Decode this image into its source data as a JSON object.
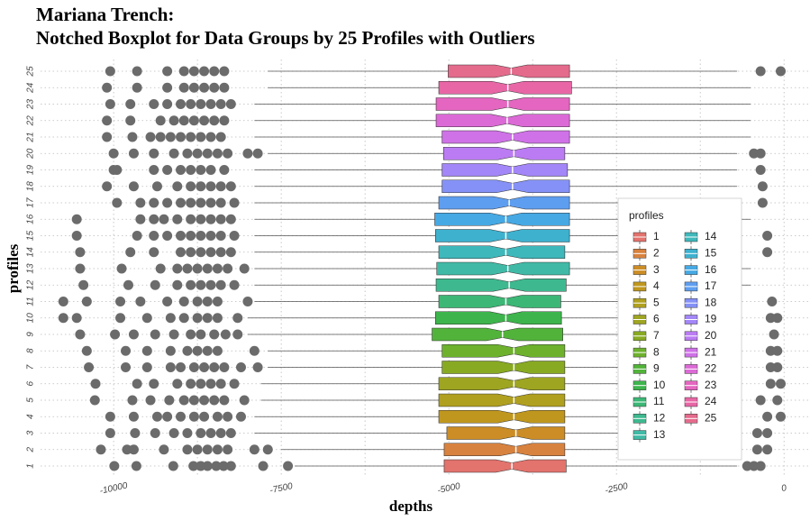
{
  "chart_data": {
    "type": "boxplot",
    "title": "Mariana Trench:",
    "subtitle": "Notched Boxplot for Data Groups by 25 Profiles with Outliers",
    "x_label": "depths",
    "y_label": "profiles",
    "legend_title": "profiles",
    "xlim": [
      -11090,
      360
    ],
    "xticks": [
      -10000,
      -7500,
      -5000,
      -2500,
      0
    ],
    "x_minor_ticks": [
      -8750,
      -6250,
      -3750,
      -1250
    ],
    "grid": true,
    "legend_position": "right",
    "categories": [
      "1",
      "2",
      "3",
      "4",
      "5",
      "6",
      "7",
      "8",
      "9",
      "10",
      "11",
      "12",
      "13",
      "14",
      "15",
      "16",
      "17",
      "18",
      "19",
      "20",
      "21",
      "22",
      "23",
      "24",
      "25"
    ],
    "series": [
      {
        "name": "1",
        "color": "#e3736d",
        "whisker_low": -7300,
        "q1": -5070,
        "median": -4060,
        "q3": -3250,
        "whisker_high": -700,
        "notch": [
          -4300,
          -3820
        ],
        "outliers": [
          -9990,
          -9660,
          -9110,
          -8810,
          -8700,
          -8600,
          -8470,
          -8360,
          -8250,
          -7770,
          -7400,
          -550,
          -450,
          -350
        ]
      },
      {
        "name": "2",
        "color": "#d8823f",
        "whisker_low": -7500,
        "q1": -5070,
        "median": -4000,
        "q3": -3270,
        "whisker_high": -700,
        "notch": [
          -4240,
          -3760
        ],
        "outliers": [
          -10190,
          -9800,
          -9700,
          -9250,
          -8900,
          -8750,
          -8600,
          -8450,
          -8300,
          -7900,
          -7700,
          -400,
          -250
        ]
      },
      {
        "name": "3",
        "color": "#cc8d26",
        "whisker_low": -7900,
        "q1": -5030,
        "median": -4000,
        "q3": -3270,
        "whisker_high": -700,
        "notch": [
          -4240,
          -3760
        ],
        "outliers": [
          -10050,
          -9680,
          -9380,
          -9100,
          -8900,
          -8700,
          -8550,
          -8400,
          -8250,
          -400,
          -250
        ]
      },
      {
        "name": "4",
        "color": "#c0971e",
        "whisker_low": -7900,
        "q1": -5150,
        "median": -4030,
        "q3": -3270,
        "whisker_high": -700,
        "notch": [
          -4270,
          -3790
        ],
        "outliers": [
          -10050,
          -9700,
          -9350,
          -9200,
          -9000,
          -8800,
          -8650,
          -8450,
          -8300,
          -8100,
          -250,
          -50
        ]
      },
      {
        "name": "5",
        "color": "#b0a01f",
        "whisker_low": -7800,
        "q1": -5150,
        "median": -4030,
        "q3": -3270,
        "whisker_high": -700,
        "notch": [
          -4270,
          -3790
        ],
        "outliers": [
          -10280,
          -9720,
          -9450,
          -9170,
          -8950,
          -8800,
          -8650,
          -8500,
          -8350,
          -8050,
          -350,
          -100
        ]
      },
      {
        "name": "6",
        "color": "#9ea521",
        "whisker_low": -7800,
        "q1": -5150,
        "median": -4030,
        "q3": -3270,
        "whisker_high": -700,
        "notch": [
          -4270,
          -3790
        ],
        "outliers": [
          -10270,
          -9650,
          -9400,
          -9050,
          -8850,
          -8700,
          -8550,
          -8400,
          -8200,
          -200,
          -50
        ]
      },
      {
        "name": "7",
        "color": "#88aa22",
        "whisker_low": -7700,
        "q1": -5100,
        "median": -4030,
        "q3": -3270,
        "whisker_high": -700,
        "notch": [
          -4270,
          -3790
        ],
        "outliers": [
          -10370,
          -9820,
          -9500,
          -9150,
          -9000,
          -8800,
          -8650,
          -8500,
          -8350,
          -8100,
          -7850,
          -200,
          -100
        ]
      },
      {
        "name": "8",
        "color": "#6db12d",
        "whisker_low": -7700,
        "q1": -5100,
        "median": -4030,
        "q3": -3270,
        "whisker_high": -700,
        "notch": [
          -4270,
          -3790
        ],
        "outliers": [
          -10400,
          -9820,
          -9500,
          -9150,
          -8900,
          -8750,
          -8600,
          -8450,
          -7900,
          -200,
          -100
        ]
      },
      {
        "name": "9",
        "color": "#52b33a",
        "whisker_low": -8000,
        "q1": -5250,
        "median": -4200,
        "q3": -3300,
        "whisker_high": -700,
        "notch": [
          -4440,
          -3960
        ],
        "outliers": [
          -10500,
          -9980,
          -9700,
          -9380,
          -9100,
          -8850,
          -8700,
          -8500,
          -8330,
          -8150,
          -150
        ]
      },
      {
        "name": "10",
        "color": "#3db54c",
        "whisker_low": -8000,
        "q1": -5200,
        "median": -4150,
        "q3": -3320,
        "whisker_high": -700,
        "notch": [
          -4390,
          -3910
        ],
        "outliers": [
          -10750,
          -10550,
          -9900,
          -9500,
          -9150,
          -8950,
          -8750,
          -8600,
          -8450,
          -8150,
          -200,
          -100
        ]
      },
      {
        "name": "11",
        "color": "#3cb775",
        "whisker_low": -7900,
        "q1": -5150,
        "median": -4150,
        "q3": -3330,
        "whisker_high": -700,
        "notch": [
          -4390,
          -3910
        ],
        "outliers": [
          -10750,
          -10400,
          -9900,
          -9600,
          -9200,
          -8950,
          -8750,
          -8600,
          -8450,
          -8000,
          -180
        ]
      },
      {
        "name": "12",
        "color": "#3eb98f",
        "whisker_low": -7900,
        "q1": -5190,
        "median": -4100,
        "q3": -3250,
        "whisker_high": -500,
        "notch": [
          -4340,
          -3860
        ],
        "outliers": [
          -10450,
          -9780,
          -9380,
          -9050,
          -8850,
          -8700,
          -8550,
          -8400,
          -8200
        ]
      },
      {
        "name": "13",
        "color": "#40baa6",
        "whisker_low": -7900,
        "q1": -5180,
        "median": -4120,
        "q3": -3200,
        "whisker_high": -500,
        "notch": [
          -4360,
          -3880
        ],
        "outliers": [
          -10500,
          -9880,
          -9300,
          -9050,
          -8900,
          -8750,
          -8600,
          -8450,
          -8300,
          -8050
        ]
      },
      {
        "name": "14",
        "color": "#3fb8bb",
        "whisker_low": -7900,
        "q1": -5150,
        "median": -4150,
        "q3": -3270,
        "whisker_high": -700,
        "notch": [
          -4390,
          -3910
        ],
        "outliers": [
          -10500,
          -9750,
          -9400,
          -9000,
          -8850,
          -8700,
          -8550,
          -8400,
          -8250,
          -250
        ]
      },
      {
        "name": "15",
        "color": "#3eb1cf",
        "whisker_low": -7900,
        "q1": -5200,
        "median": -4150,
        "q3": -3200,
        "whisker_high": -700,
        "notch": [
          -4390,
          -3910
        ],
        "outliers": [
          -10550,
          -9650,
          -9400,
          -9200,
          -9000,
          -8850,
          -8700,
          -8550,
          -8400,
          -8200,
          -250
        ]
      },
      {
        "name": "16",
        "color": "#46a9e4",
        "whisker_low": -7900,
        "q1": -5210,
        "median": -4150,
        "q3": -3200,
        "whisker_high": -500,
        "notch": [
          -4390,
          -3910
        ],
        "outliers": [
          -10550,
          -9600,
          -9400,
          -9250,
          -9050,
          -8850,
          -8700,
          -8550,
          -8400,
          -8250
        ]
      },
      {
        "name": "17",
        "color": "#5e9ef0",
        "whisker_low": -7900,
        "q1": -5150,
        "median": -4100,
        "q3": -3200,
        "whisker_high": -700,
        "notch": [
          -4340,
          -3860
        ],
        "outliers": [
          -9950,
          -9600,
          -9400,
          -9200,
          -9000,
          -8850,
          -8700,
          -8550,
          -8400,
          -8200,
          -320
        ]
      },
      {
        "name": "18",
        "color": "#8591f6",
        "whisker_low": -7900,
        "q1": -5100,
        "median": -4050,
        "q3": -3200,
        "whisker_high": -700,
        "notch": [
          -4290,
          -3810
        ],
        "outliers": [
          -10100,
          -9700,
          -9350,
          -9050,
          -8850,
          -8700,
          -8550,
          -8400,
          -8250,
          -320
        ]
      },
      {
        "name": "19",
        "color": "#a386f8",
        "whisker_low": -7900,
        "q1": -5100,
        "median": -4050,
        "q3": -3230,
        "whisker_high": -700,
        "notch": [
          -4290,
          -3810
        ],
        "outliers": [
          -10000,
          -9950,
          -9400,
          -9200,
          -9000,
          -8850,
          -8700,
          -8550,
          -8350,
          -350
        ]
      },
      {
        "name": "20",
        "color": "#bb7cf3",
        "whisker_low": -7700,
        "q1": -5080,
        "median": -4030,
        "q3": -3270,
        "whisker_high": -700,
        "notch": [
          -4270,
          -3790
        ],
        "outliers": [
          -10000,
          -9700,
          -9400,
          -9100,
          -8900,
          -8750,
          -8600,
          -8450,
          -8300,
          -8000,
          -7850,
          -450,
          -350
        ]
      },
      {
        "name": "21",
        "color": "#cf72e8",
        "whisker_low": -7900,
        "q1": -5100,
        "median": -4050,
        "q3": -3200,
        "whisker_high": -500,
        "notch": [
          -4290,
          -3810
        ],
        "outliers": [
          -10100,
          -9720,
          -9450,
          -9300,
          -9150,
          -9000,
          -8850,
          -8700,
          -8550,
          -8400
        ]
      },
      {
        "name": "22",
        "color": "#dc6ad6",
        "whisker_low": -7900,
        "q1": -5190,
        "median": -4130,
        "q3": -3200,
        "whisker_high": -500,
        "notch": [
          -4370,
          -3890
        ],
        "outliers": [
          -10100,
          -9750,
          -9300,
          -9100,
          -8950,
          -8800,
          -8650,
          -8500,
          -8350
        ]
      },
      {
        "name": "23",
        "color": "#e466c0",
        "whisker_low": -7900,
        "q1": -5190,
        "median": -4120,
        "q3": -3200,
        "whisker_high": -500,
        "notch": [
          -4360,
          -3880
        ],
        "outliers": [
          -10050,
          -9750,
          -9400,
          -9200,
          -9000,
          -8850,
          -8700,
          -8550,
          -8400,
          -8250
        ]
      },
      {
        "name": "24",
        "color": "#e866a6",
        "whisker_low": -7700,
        "q1": -5150,
        "median": -4120,
        "q3": -3170,
        "whisker_high": -500,
        "notch": [
          -4360,
          -3880
        ],
        "outliers": [
          -10100,
          -9650,
          -9200,
          -8950,
          -8800,
          -8650,
          -8500,
          -8350
        ]
      },
      {
        "name": "25",
        "color": "#e46b8c",
        "whisker_low": -7700,
        "q1": -5010,
        "median": -4070,
        "q3": -3200,
        "whisker_high": -700,
        "notch": [
          -4310,
          -3830
        ],
        "outliers": [
          -10050,
          -9650,
          -9200,
          -8950,
          -8800,
          -8650,
          -8500,
          -8350,
          -350,
          -50
        ]
      }
    ]
  }
}
